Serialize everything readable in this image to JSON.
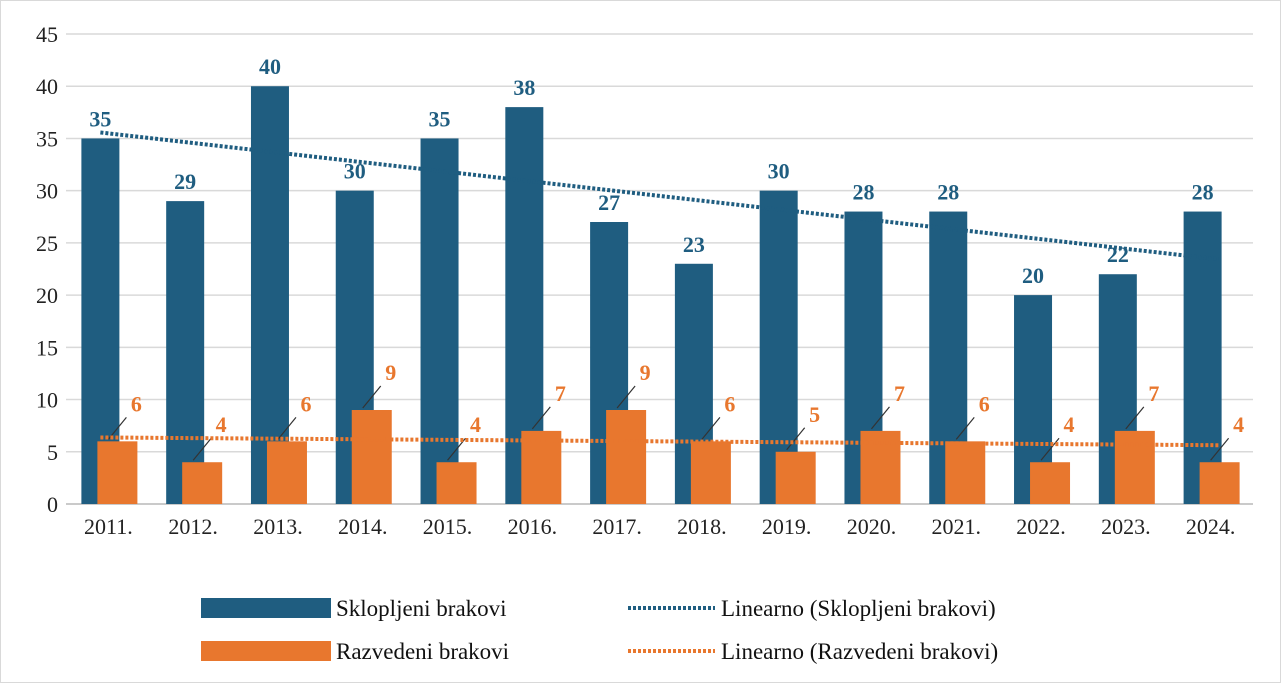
{
  "chart_data": {
    "type": "bar",
    "title": "",
    "xlabel": "",
    "ylabel": "",
    "ylim": [
      0,
      45
    ],
    "yticks": [
      0,
      5,
      10,
      15,
      20,
      25,
      30,
      35,
      40,
      45
    ],
    "grid": true,
    "legend_position": "bottom",
    "categories": [
      "2011.",
      "2012.",
      "2013.",
      "2014.",
      "2015.",
      "2016.",
      "2017.",
      "2018.",
      "2019.",
      "2020.",
      "2021.",
      "2022.",
      "2023.",
      "2024."
    ],
    "series": [
      {
        "name": "Sklopljeni brakovi",
        "color": "#1f5d80",
        "values": [
          35,
          29,
          40,
          30,
          35,
          38,
          27,
          23,
          30,
          28,
          28,
          20,
          22,
          28
        ]
      },
      {
        "name": "Razvedeni brakovi",
        "color": "#e8772e",
        "values": [
          6,
          4,
          6,
          9,
          4,
          7,
          9,
          6,
          5,
          7,
          6,
          4,
          7,
          4
        ]
      }
    ],
    "trendlines": [
      {
        "name": "Linearno (Sklopljeni brakovi)",
        "of": "Sklopljeni brakovi",
        "type": "linear",
        "color": "#1f5d80",
        "style": "dotted"
      },
      {
        "name": "Linearno (Razvedeni brakovi)",
        "of": "Razvedeni brakovi",
        "type": "linear",
        "color": "#e8772e",
        "style": "dotted"
      }
    ]
  }
}
